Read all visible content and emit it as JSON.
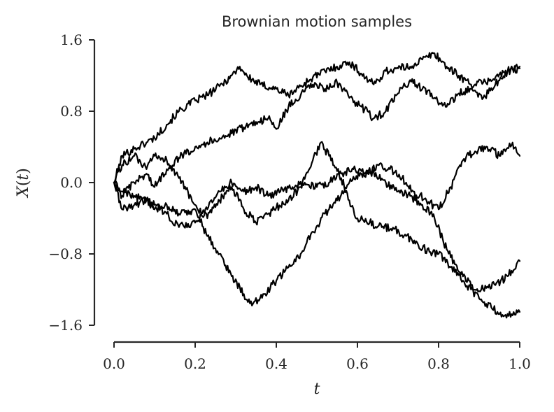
{
  "chart_data": {
    "type": "line",
    "title": "Brownian motion samples",
    "xlabel": "t",
    "ylabel": "X(t)",
    "xlim": [
      0.0,
      1.0
    ],
    "ylim": [
      -1.6,
      1.6
    ],
    "xticks": [
      0.0,
      0.2,
      0.4,
      0.6,
      0.8,
      1.0
    ],
    "xtick_labels": [
      "0.0",
      "0.2",
      "0.4",
      "0.6",
      "0.8",
      "1.0"
    ],
    "yticks": [
      -1.6,
      -0.8,
      0.0,
      0.8,
      1.6
    ],
    "ytick_labels": [
      "−1.6",
      "−0.8",
      "0.0",
      "0.8",
      "1.6"
    ],
    "line_color": "#000000",
    "axis_color": "#262626",
    "grid": false,
    "legend": "none",
    "series": [
      {
        "x": [
          0.0,
          0.02,
          0.05,
          0.08,
          0.1,
          0.13,
          0.16,
          0.2,
          0.23,
          0.26,
          0.29,
          0.31,
          0.33,
          0.36,
          0.4,
          0.43,
          0.46,
          0.49,
          0.52,
          0.55,
          0.58,
          0.61,
          0.64,
          0.67,
          0.7,
          0.73,
          0.76,
          0.79,
          0.82,
          0.85,
          0.88,
          0.91,
          0.94,
          0.97,
          1.0
        ],
        "y": [
          0.0,
          0.3,
          0.38,
          0.45,
          0.5,
          0.65,
          0.8,
          0.92,
          0.98,
          1.08,
          1.2,
          1.3,
          1.18,
          1.1,
          1.05,
          0.98,
          1.08,
          1.18,
          1.25,
          1.3,
          1.35,
          1.22,
          1.1,
          1.25,
          1.28,
          1.3,
          1.38,
          1.45,
          1.3,
          1.2,
          1.1,
          1.12,
          1.18,
          1.25,
          1.28
        ]
      },
      {
        "x": [
          0.0,
          0.02,
          0.05,
          0.08,
          0.1,
          0.13,
          0.16,
          0.2,
          0.23,
          0.26,
          0.29,
          0.32,
          0.35,
          0.38,
          0.4,
          0.43,
          0.46,
          0.49,
          0.52,
          0.55,
          0.58,
          0.61,
          0.64,
          0.67,
          0.7,
          0.73,
          0.76,
          0.79,
          0.82,
          0.85,
          0.88,
          0.91,
          0.94,
          0.97,
          1.0
        ],
        "y": [
          0.0,
          -0.15,
          0.0,
          0.1,
          -0.05,
          0.15,
          0.28,
          0.4,
          0.45,
          0.5,
          0.55,
          0.62,
          0.68,
          0.72,
          0.6,
          0.85,
          0.98,
          1.1,
          1.05,
          1.12,
          0.95,
          0.85,
          0.72,
          0.8,
          1.0,
          1.15,
          1.05,
          0.95,
          0.85,
          1.0,
          1.05,
          0.95,
          1.1,
          1.25,
          1.3
        ]
      },
      {
        "x": [
          0.0,
          0.02,
          0.05,
          0.08,
          0.1,
          0.13,
          0.16,
          0.2,
          0.23,
          0.26,
          0.29,
          0.32,
          0.35,
          0.38,
          0.4,
          0.43,
          0.46,
          0.49,
          0.51,
          0.53,
          0.56,
          0.58,
          0.6,
          0.63,
          0.66,
          0.69,
          0.72,
          0.75,
          0.78,
          0.8,
          0.83,
          0.86,
          0.88,
          0.9,
          0.93,
          0.96,
          1.0
        ],
        "y": [
          0.0,
          0.2,
          0.3,
          0.15,
          0.3,
          0.25,
          0.05,
          -0.25,
          -0.4,
          -0.2,
          -0.05,
          -0.3,
          -0.45,
          -0.35,
          -0.28,
          -0.2,
          -0.05,
          0.25,
          0.45,
          0.3,
          0.05,
          -0.2,
          -0.4,
          -0.45,
          -0.5,
          -0.52,
          -0.6,
          -0.7,
          -0.78,
          -0.8,
          -0.95,
          -1.1,
          -1.2,
          -1.3,
          -1.4,
          -1.5,
          -1.45
        ]
      },
      {
        "x": [
          0.0,
          0.02,
          0.05,
          0.08,
          0.1,
          0.13,
          0.16,
          0.2,
          0.23,
          0.26,
          0.29,
          0.32,
          0.34,
          0.37,
          0.4,
          0.43,
          0.46,
          0.49,
          0.52,
          0.55,
          0.58,
          0.61,
          0.64,
          0.67,
          0.7,
          0.73,
          0.76,
          0.79,
          0.82,
          0.85,
          0.88,
          0.91,
          0.94,
          0.97,
          1.0
        ],
        "y": [
          0.0,
          -0.3,
          -0.25,
          -0.2,
          -0.3,
          -0.25,
          -0.35,
          -0.3,
          -0.6,
          -0.8,
          -1.05,
          -1.25,
          -1.38,
          -1.25,
          -1.1,
          -0.95,
          -0.8,
          -0.55,
          -0.35,
          -0.2,
          0.0,
          0.1,
          0.12,
          0.0,
          -0.1,
          -0.15,
          -0.25,
          -0.4,
          -0.75,
          -1.0,
          -1.15,
          -1.2,
          -1.15,
          -1.05,
          -0.88
        ]
      },
      {
        "x": [
          0.0,
          0.02,
          0.05,
          0.08,
          0.1,
          0.13,
          0.16,
          0.2,
          0.23,
          0.26,
          0.29,
          0.32,
          0.35,
          0.38,
          0.41,
          0.44,
          0.47,
          0.5,
          0.53,
          0.56,
          0.59,
          0.62,
          0.65,
          0.68,
          0.71,
          0.74,
          0.77,
          0.8,
          0.83,
          0.86,
          0.89,
          0.92,
          0.95,
          0.98,
          1.0
        ],
        "y": [
          0.0,
          -0.1,
          -0.15,
          -0.2,
          -0.25,
          -0.35,
          -0.5,
          -0.45,
          -0.3,
          -0.1,
          0.0,
          -0.1,
          -0.05,
          -0.15,
          -0.1,
          -0.05,
          0.0,
          -0.05,
          0.0,
          0.1,
          0.15,
          0.1,
          0.2,
          0.15,
          0.05,
          -0.1,
          -0.2,
          -0.3,
          -0.05,
          0.25,
          0.35,
          0.4,
          0.3,
          0.42,
          0.3
        ]
      }
    ]
  }
}
